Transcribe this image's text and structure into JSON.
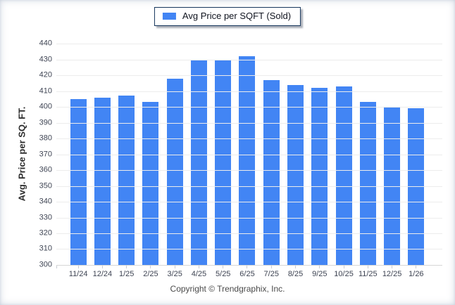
{
  "legend": {
    "label": "Avg Price per SQFT (Sold)"
  },
  "footer": {
    "copyright": "Copyright © Trendgraphix, Inc."
  },
  "colors": {
    "bar": "#4285f4",
    "legend_border": "#16365c",
    "gridline": "#ececec",
    "axis_line": "#d6d6d6",
    "tick_text": "#3e4453"
  },
  "chart_data": {
    "type": "bar",
    "title": "",
    "categories": [
      "11/24",
      "12/24",
      "1/25",
      "2/25",
      "3/25",
      "4/25",
      "5/25",
      "6/25",
      "7/25",
      "8/25",
      "9/25",
      "10/25",
      "11/25",
      "12/25",
      "1/26"
    ],
    "series": [
      {
        "name": "Avg Price per SQFT (Sold)",
        "values": [
          405,
          406,
          407,
          403,
          418,
          430,
          430,
          432,
          417,
          414,
          412,
          413,
          403,
          400,
          399
        ]
      }
    ],
    "xlabel": "",
    "ylabel": "Avg. Price per SQ. FT.",
    "ylim": [
      300,
      440
    ],
    "ytick_step": 10,
    "grid": true,
    "legend_position": "top",
    "bar_color": "#4285f4"
  }
}
